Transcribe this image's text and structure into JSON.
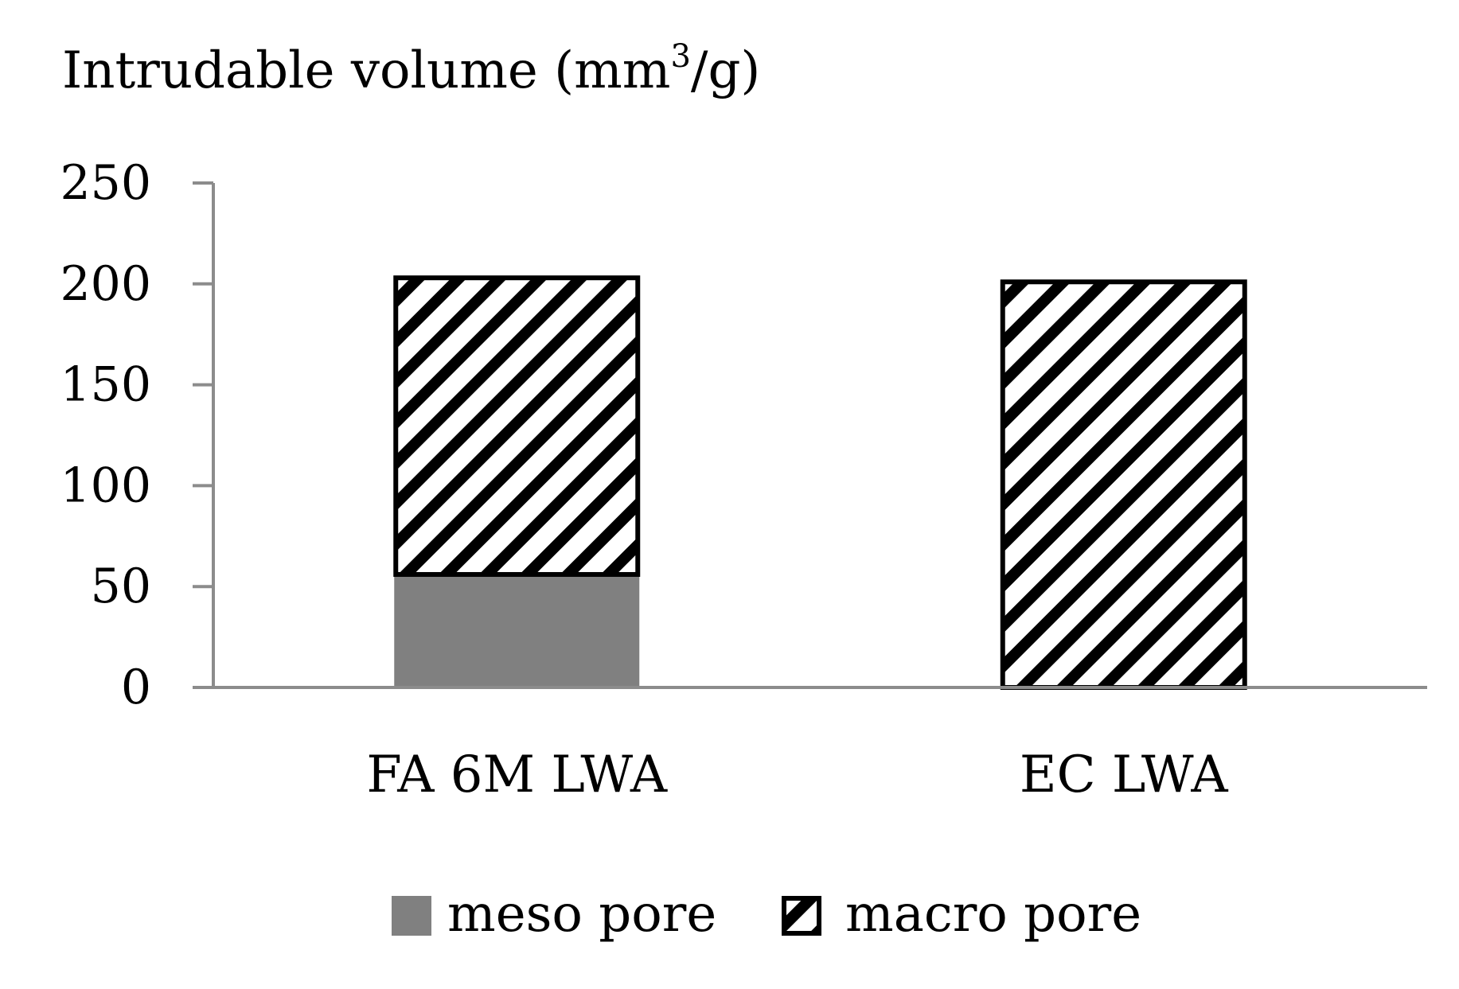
{
  "chart_data": {
    "type": "bar",
    "stacked": true,
    "title": "",
    "ylabel": "Intrudable volume (mm³/g)",
    "ylabel_parts": {
      "before": "Intrudable volume (mm",
      "sup": "3",
      "after": "/g)"
    },
    "xlabel": "",
    "categories": [
      "FA 6M LWA",
      "EC LWA"
    ],
    "ylim": [
      0,
      250
    ],
    "yticks": [
      0,
      50,
      100,
      150,
      200,
      250
    ],
    "grid": false,
    "legend_position": "bottom",
    "series": [
      {
        "name": "meso pore",
        "values": [
          56,
          0
        ],
        "style": "solid",
        "color": "#808080"
      },
      {
        "name": "macro pore",
        "values": [
          147,
          201
        ],
        "style": "diagonal-hatch",
        "color": "#000000"
      }
    ]
  }
}
